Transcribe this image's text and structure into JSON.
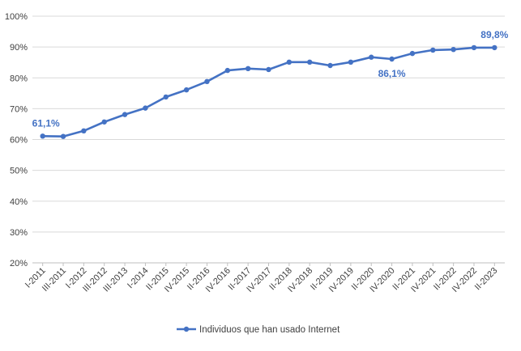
{
  "chart_data": {
    "type": "line",
    "title": "",
    "xlabel": "",
    "ylabel": "",
    "ylim": [
      20,
      100
    ],
    "y_ticks": [
      "20%",
      "30%",
      "40%",
      "50%",
      "60%",
      "70%",
      "80%",
      "90%",
      "100%"
    ],
    "y_tick_values": [
      20,
      30,
      40,
      50,
      60,
      70,
      80,
      90,
      100
    ],
    "grid": "horizontal",
    "legend_position": "bottom",
    "categories": [
      "I-2011",
      "III-2011",
      "I-2012",
      "III-2012",
      "III-2013",
      "I-2014",
      "II-2015",
      "IV-2015",
      "II-2016",
      "IV-2016",
      "II-2017",
      "IV-2017",
      "II-2018",
      "IV-2018",
      "II-2019",
      "IV-2019",
      "II-2020",
      "IV-2020",
      "II-2021",
      "IV-2021",
      "II-2022",
      "IV-2022",
      "II-2023"
    ],
    "series": [
      {
        "name": "Individuos que han usado Internet",
        "color": "#4472C4",
        "values": [
          61.1,
          61.0,
          62.8,
          65.7,
          68.1,
          70.2,
          73.8,
          76.1,
          78.8,
          82.4,
          83.0,
          82.7,
          85.1,
          85.1,
          84.0,
          85.1,
          86.7,
          86.1,
          87.9,
          89.0,
          89.2,
          89.8,
          89.8
        ]
      }
    ],
    "annotations": [
      {
        "index": 0,
        "text": "61,1%"
      },
      {
        "index": 17,
        "text": "86,1%"
      },
      {
        "index": 22,
        "text": "89,8%"
      }
    ]
  }
}
